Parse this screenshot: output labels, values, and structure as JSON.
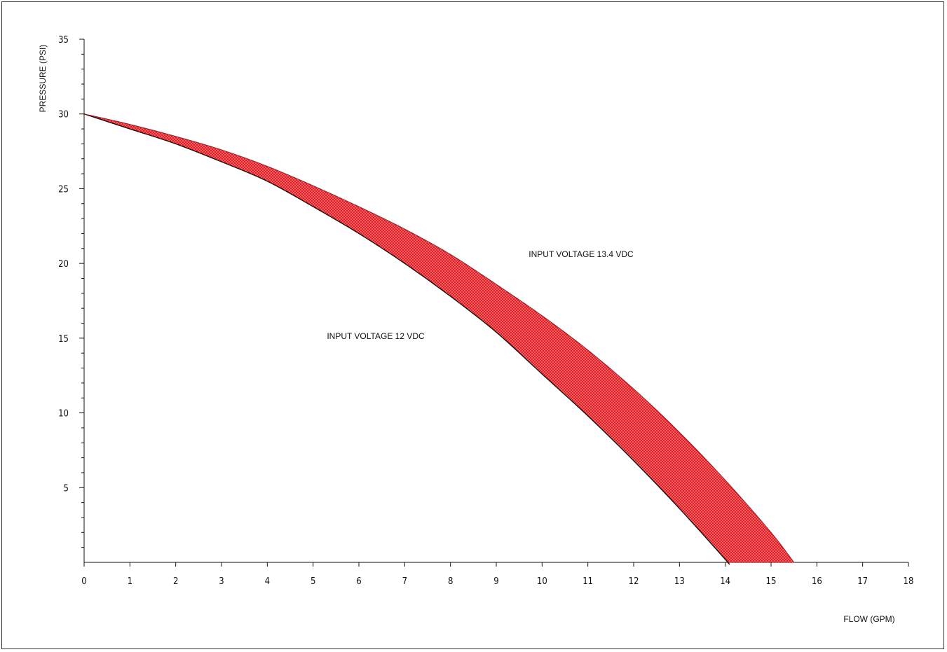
{
  "chart_data": {
    "type": "area",
    "xlabel": "FLOW (GPM)",
    "ylabel": "PRESSURE (PSI)",
    "xlim": [
      0,
      18
    ],
    "ylim": [
      0,
      35
    ],
    "x_ticks": [
      0,
      1,
      2,
      3,
      4,
      5,
      6,
      7,
      8,
      9,
      10,
      11,
      12,
      13,
      14,
      15,
      16,
      17,
      18
    ],
    "y_ticks": [
      5,
      10,
      15,
      20,
      25,
      30,
      35
    ],
    "y_minor_step": 1,
    "grid": false,
    "fill_color": "#e31e24",
    "line_color": "#111111",
    "series": [
      {
        "name": "INPUT VOLTAGE 12 VDC",
        "x": [
          0,
          1,
          2,
          3,
          4,
          5,
          6,
          7,
          8,
          9,
          10,
          11,
          12,
          13,
          14,
          14.05
        ],
        "y": [
          30,
          29.0,
          28.0,
          26.8,
          25.5,
          23.8,
          22.0,
          20.0,
          17.8,
          15.4,
          12.6,
          9.8,
          6.8,
          3.6,
          0.2,
          0
        ]
      },
      {
        "name": "INPUT VOLTAGE 13.4 VDC",
        "x": [
          0,
          1,
          2,
          3,
          4,
          5,
          6,
          7,
          8,
          9,
          10,
          11,
          12,
          13,
          14,
          15,
          15.5
        ],
        "y": [
          30,
          29.3,
          28.5,
          27.6,
          26.5,
          25.2,
          23.8,
          22.3,
          20.6,
          18.6,
          16.5,
          14.2,
          11.6,
          8.7,
          5.5,
          2.0,
          0
        ]
      }
    ],
    "annotations": {
      "low": "INPUT VOLTAGE 12 VDC",
      "high": "INPUT VOLTAGE 13.4 VDC"
    }
  }
}
